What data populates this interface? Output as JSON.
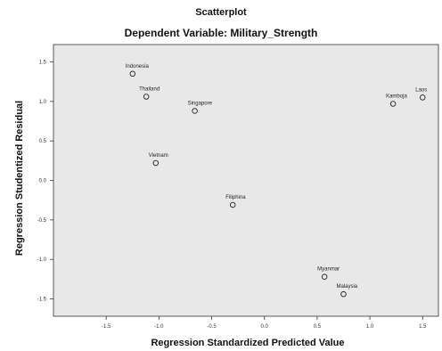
{
  "chart_data": {
    "type": "scatter",
    "title": "Scatterplot",
    "subtitle": "Dependent Variable: Military_Strength",
    "xlabel": "Regression Standardized Predicted Value",
    "ylabel": "Regression Studentized Residual",
    "xlim": [
      -2.0,
      1.65
    ],
    "ylim": [
      -1.72,
      1.72
    ],
    "xticks": [
      -1.5,
      -1.0,
      -0.5,
      0.0,
      0.5,
      1.0,
      1.5
    ],
    "xtick_labels": [
      "-1.5",
      "-1.0",
      "-0.5",
      "0.0",
      "0.5",
      "1.0",
      "1.5"
    ],
    "yticks": [
      1.5,
      1.0,
      0.5,
      0.0,
      -0.5,
      -1.0,
      -1.5
    ],
    "ytick_labels": [
      "1.5",
      "1.0",
      "0.5",
      "0.0",
      "-0.5",
      "-1.0",
      "-1.5"
    ],
    "grid": false,
    "colors": {
      "plot_bg": "#e8e8e8",
      "marker": "#222222",
      "axis": "#333333"
    },
    "points": [
      {
        "label": "Indonesia",
        "x": -1.25,
        "y": 1.35
      },
      {
        "label": "Thailand",
        "x": -1.12,
        "y": 1.06
      },
      {
        "label": "Singapore",
        "x": -0.66,
        "y": 0.88
      },
      {
        "label": "Vietnam",
        "x": -1.03,
        "y": 0.22
      },
      {
        "label": "Filiphina",
        "x": -0.3,
        "y": -0.31
      },
      {
        "label": "Kamboja",
        "x": 1.22,
        "y": 0.97
      },
      {
        "label": "Laos",
        "x": 1.5,
        "y": 1.05
      },
      {
        "label": "Myanmar",
        "x": 0.57,
        "y": -1.22
      },
      {
        "label": "Malaysia",
        "x": 0.75,
        "y": -1.44
      }
    ]
  }
}
